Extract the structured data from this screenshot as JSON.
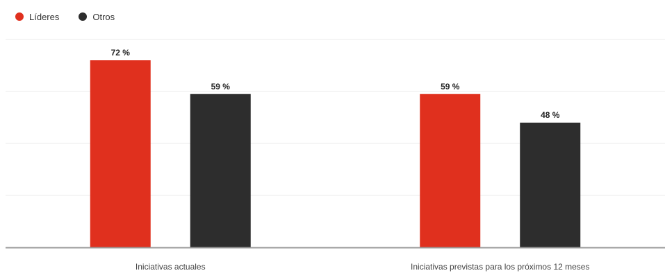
{
  "chart_data": {
    "type": "bar",
    "categories": [
      "Iniciativas actuales",
      "Iniciativas previstas para los próximos 12 meses"
    ],
    "series": [
      {
        "name": "Líderes",
        "values": [
          72,
          59
        ],
        "labels": [
          "72 %",
          "59 %"
        ],
        "color": "#e0301e"
      },
      {
        "name": "Otros",
        "values": [
          59,
          48
        ],
        "labels": [
          "59 %",
          "48 %"
        ],
        "color": "#2d2d2d"
      }
    ],
    "ylim": [
      0,
      80
    ],
    "grid": true,
    "legend_position": "top-left",
    "xlabel": "",
    "ylabel": ""
  }
}
